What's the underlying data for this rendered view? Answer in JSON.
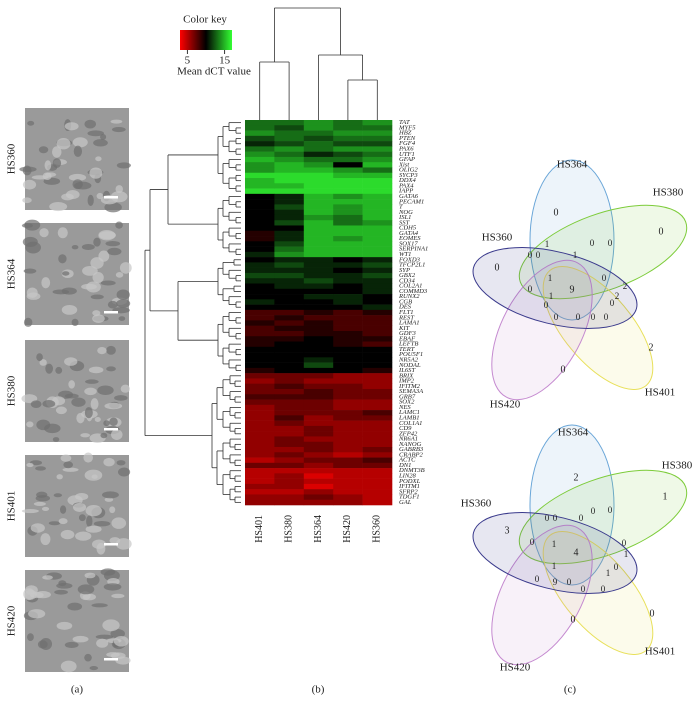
{
  "panel_a": {
    "label": "(a)",
    "images": [
      "HS360",
      "HS364",
      "HS380",
      "HS401",
      "HS420"
    ]
  },
  "chart_data": {
    "type": "heatmap",
    "label": "(b)",
    "legend_title": "Color key",
    "colorbar_label": "Mean dCT value",
    "colorbar_ticks": [
      5,
      15
    ],
    "zlim": [
      3,
      17
    ],
    "colors": [
      "#ff0000",
      "#000000",
      "#33ff33"
    ],
    "columns": [
      "HS401",
      "HS380",
      "HS364",
      "HS420",
      "HS360"
    ],
    "rows": [
      "TAT",
      "MYF5",
      "HBZ",
      "PTEN",
      "FGF4",
      "PAX6",
      "UTF1",
      "GFAP",
      "Xist",
      "OLIG2",
      "SYCP3",
      "DDX4",
      "PAX4",
      "IAPP",
      "GATA6",
      "PECAM1",
      "T",
      "NOG",
      "ISL1",
      "SST",
      "CDH5",
      "GATA4",
      "EOMES",
      "SOX17",
      "SERPINA1",
      "WT1",
      "FOXD3",
      "TFCP2L1",
      "SYP",
      "GBX2",
      "CD34",
      "COL2A1",
      "COMMD3",
      "RUNX2",
      "CGB",
      "DES",
      "FLT1",
      "REST",
      "LAMA1",
      "KIT",
      "GDF3",
      "EBAF",
      "LEFTB",
      "TERT",
      "POU5F1",
      "NR5A2",
      "NODAL",
      "IL6ST",
      "BRIX",
      "IMP2",
      "IFITM2",
      "SEMA3A",
      "GRB7",
      "SOX2",
      "NES",
      "LAMC1",
      "LAMB1",
      "COL1A1",
      "CD9",
      "ZFP42",
      "NR6A1",
      "NANOG",
      "GABRB3",
      "CRABP2",
      "ACTC",
      "DN1",
      "DNMT3B",
      "LIN28",
      "PODXL",
      "IFITM1",
      "SFRP2",
      "TDGF1",
      "GAL"
    ],
    "values": [
      [
        13,
        13,
        14,
        13,
        14
      ],
      [
        13,
        12,
        14,
        13,
        13
      ],
      [
        14,
        13,
        13,
        14,
        14
      ],
      [
        12,
        13,
        12,
        13,
        13
      ],
      [
        11,
        12,
        13,
        12,
        12
      ],
      [
        13,
        14,
        13,
        14,
        14
      ],
      [
        14,
        13,
        11,
        12,
        13
      ],
      [
        15,
        14,
        13,
        13,
        14
      ],
      [
        14,
        15,
        14,
        10,
        15
      ],
      [
        14,
        15,
        15,
        14,
        13
      ],
      [
        16,
        16,
        16,
        15,
        15
      ],
      [
        15,
        16,
        16,
        16,
        16
      ],
      [
        15,
        15,
        16,
        16,
        16
      ],
      [
        16,
        16,
        16,
        16,
        16
      ],
      [
        10,
        11,
        15,
        14,
        15
      ],
      [
        10,
        11,
        15,
        15,
        15
      ],
      [
        10,
        12,
        15,
        14,
        15
      ],
      [
        10,
        11,
        15,
        14,
        15
      ],
      [
        10,
        11,
        14,
        13,
        15
      ],
      [
        10,
        12,
        15,
        13,
        14
      ],
      [
        10,
        10,
        15,
        15,
        15
      ],
      [
        9,
        11,
        15,
        15,
        15
      ],
      [
        9,
        11,
        15,
        14,
        15
      ],
      [
        10,
        12,
        15,
        15,
        15
      ],
      [
        10,
        13,
        15,
        15,
        15
      ],
      [
        11,
        14,
        15,
        15,
        15
      ],
      [
        10,
        11,
        11,
        10,
        11
      ],
      [
        11,
        12,
        11,
        11,
        12
      ],
      [
        11,
        11,
        11,
        10,
        11
      ],
      [
        12,
        12,
        11,
        11,
        12
      ],
      [
        11,
        11,
        12,
        11,
        11
      ],
      [
        10,
        11,
        11,
        10,
        11
      ],
      [
        10,
        10,
        10,
        10,
        11
      ],
      [
        10,
        10,
        11,
        11,
        10
      ],
      [
        11,
        10,
        10,
        11,
        10
      ],
      [
        10,
        10,
        10,
        10,
        11
      ],
      [
        8,
        8,
        9,
        8,
        9
      ],
      [
        8,
        9,
        8,
        8,
        8
      ],
      [
        9,
        8,
        9,
        8,
        8
      ],
      [
        8,
        9,
        9,
        8,
        8
      ],
      [
        8,
        8,
        9,
        9,
        8
      ],
      [
        9,
        9,
        10,
        9,
        9
      ],
      [
        9,
        10,
        10,
        9,
        8
      ],
      [
        10,
        10,
        10,
        10,
        10
      ],
      [
        10,
        10,
        10,
        10,
        10
      ],
      [
        10,
        10,
        11,
        10,
        10
      ],
      [
        10,
        10,
        12,
        10,
        10
      ],
      [
        9,
        10,
        10,
        10,
        9
      ],
      [
        7,
        7,
        7,
        6,
        6
      ],
      [
        6,
        7,
        6,
        6,
        6
      ],
      [
        7,
        8,
        7,
        7,
        6
      ],
      [
        7,
        7,
        8,
        7,
        7
      ],
      [
        8,
        8,
        8,
        7,
        7
      ],
      [
        7,
        7,
        7,
        6,
        6
      ],
      [
        6,
        7,
        7,
        6,
        6
      ],
      [
        6,
        7,
        7,
        7,
        8
      ],
      [
        6,
        8,
        6,
        7,
        7
      ],
      [
        6,
        7,
        6,
        6,
        6
      ],
      [
        6,
        6,
        7,
        6,
        6
      ],
      [
        6,
        6,
        7,
        6,
        6
      ],
      [
        6,
        7,
        6,
        6,
        6
      ],
      [
        6,
        7,
        7,
        6,
        6
      ],
      [
        6,
        6,
        7,
        6,
        7
      ],
      [
        6,
        7,
        6,
        5,
        6
      ],
      [
        5,
        6,
        7,
        7,
        8
      ],
      [
        7,
        7,
        6,
        7,
        7
      ],
      [
        5,
        5,
        5,
        5,
        5
      ],
      [
        5,
        6,
        4,
        5,
        5
      ],
      [
        5,
        6,
        5,
        5,
        5
      ],
      [
        6,
        6,
        4,
        5,
        5
      ],
      [
        5,
        5,
        6,
        5,
        5
      ],
      [
        6,
        6,
        7,
        6,
        5
      ],
      [
        6,
        6,
        6,
        6,
        5
      ]
    ]
  },
  "panel_c": {
    "label": "(c)",
    "set_colors": [
      "#6aa6d8",
      "#7dcc3a",
      "#e8e05a",
      "#c58ad0",
      "#3a3a8c"
    ],
    "venns": [
      {
        "sets": [
          "HS364",
          "HS380",
          "HS401",
          "HS420",
          "HS360"
        ],
        "counts": [
          0,
          0,
          2,
          0,
          0,
          9,
          1,
          0,
          0,
          1,
          0,
          0,
          0,
          1,
          0,
          2,
          2,
          0,
          0,
          1,
          0,
          0,
          0,
          0
        ]
      },
      {
        "sets": [
          "HS364",
          "HS380",
          "HS401",
          "HS420",
          "HS360"
        ],
        "counts": [
          2,
          1,
          0,
          0,
          3,
          4,
          0,
          0,
          0,
          0,
          0,
          0,
          1,
          0,
          1,
          0,
          0,
          1,
          9,
          0,
          0,
          0,
          1
        ]
      }
    ]
  }
}
